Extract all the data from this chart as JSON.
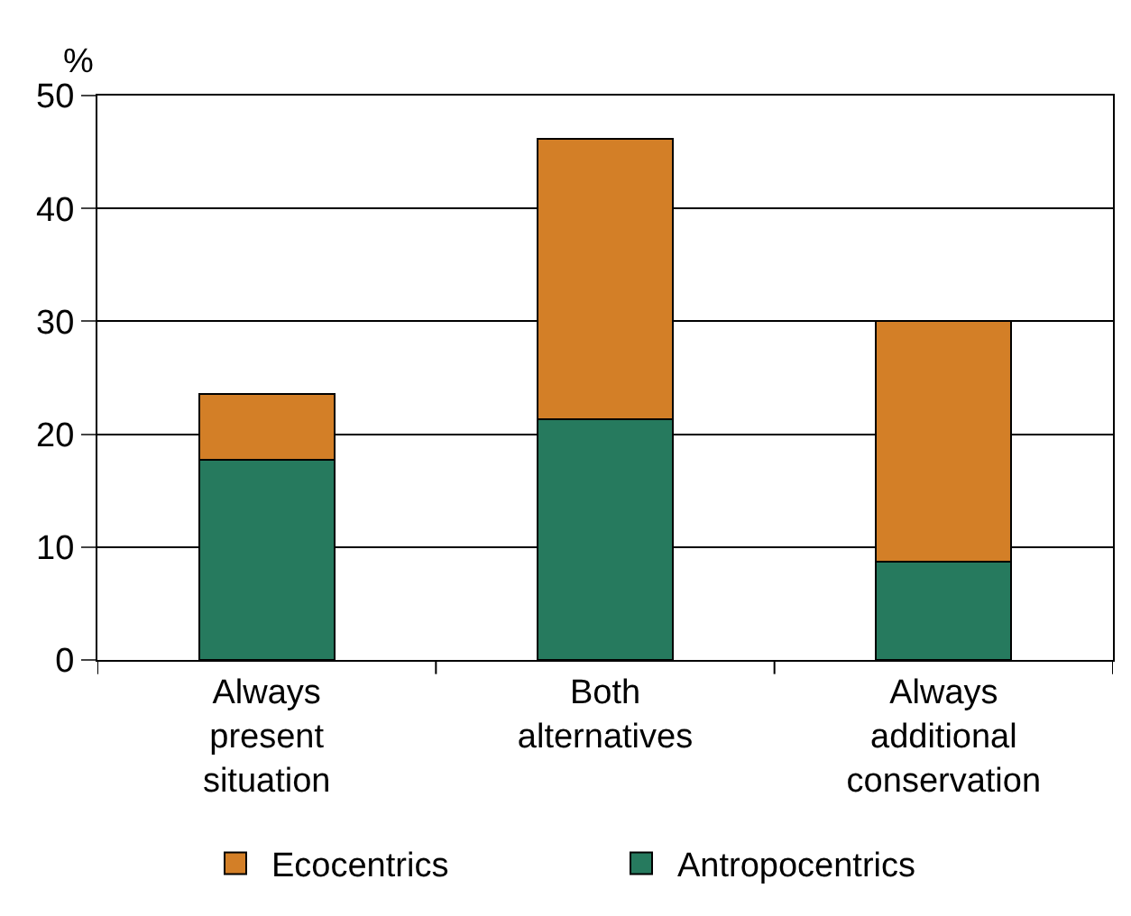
{
  "chart_data": {
    "type": "bar",
    "stacked": true,
    "ylabel": "%",
    "categories": [
      "Always\npresent\nsituation",
      "Both\nalternatives",
      "Always\nadditional\nconservation"
    ],
    "series": [
      {
        "name": "Antropocentrics",
        "color": "#267a5e",
        "values": [
          17.7,
          21.3,
          8.7
        ]
      },
      {
        "name": "Ecocentrics",
        "color": "#d37f27",
        "values": [
          5.9,
          24.9,
          21.3
        ]
      }
    ],
    "ylim": [
      0,
      50
    ],
    "yticks": [
      0,
      10,
      20,
      30,
      40,
      50
    ],
    "grid": "y",
    "legend": "bottom"
  }
}
